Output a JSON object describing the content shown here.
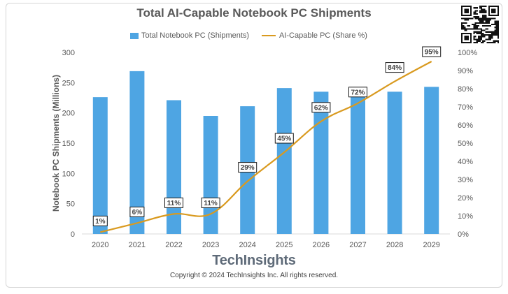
{
  "title": "Total AI-Capable Notebook PC Shipments",
  "brand": "TechInsights",
  "copyright": "Copyright © 2024 TechInsights Inc.  All rights reserved.",
  "colors": {
    "bar": "#4ea5e3",
    "line": "#d99a1f",
    "text": "#595959"
  },
  "chart_data": {
    "type": "bar",
    "title": "Total AI-Capable Notebook PC Shipments",
    "categories": [
      "2020",
      "2021",
      "2022",
      "2023",
      "2024",
      "2025",
      "2026",
      "2027",
      "2028",
      "2029"
    ],
    "series": [
      {
        "name": "Total Notebook PC (Shipments)",
        "type": "bar",
        "axis": "left",
        "values": [
          226,
          269,
          221,
          195,
          211,
          241,
          235,
          233,
          235,
          243
        ]
      },
      {
        "name": "AI-Capable PC (Share %)",
        "type": "line",
        "axis": "right",
        "values": [
          1,
          6,
          11,
          11,
          29,
          45,
          62,
          72,
          84,
          95
        ],
        "labels": [
          "1%",
          "6%",
          "11%",
          "11%",
          "29%",
          "45%",
          "62%",
          "72%",
          "84%",
          "95%"
        ]
      }
    ],
    "ylabel": "Notebook PC Shipments (Millions)",
    "ylim": [
      0,
      300
    ],
    "yticks": [
      "0",
      "50",
      "100",
      "150",
      "200",
      "250",
      "300"
    ],
    "y2lim": [
      0,
      100
    ],
    "y2ticks": [
      "0%",
      "10%",
      "20%",
      "30%",
      "40%",
      "50%",
      "60%",
      "70%",
      "80%",
      "90%",
      "100%"
    ],
    "legend": "top",
    "grid": false
  }
}
